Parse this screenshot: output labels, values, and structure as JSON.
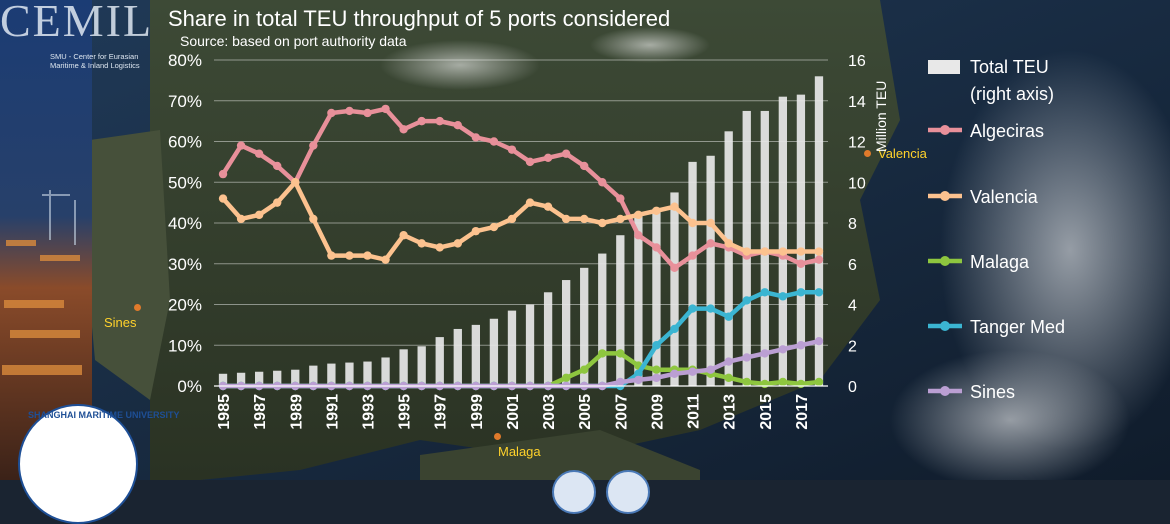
{
  "header": {
    "title": "Share in total TEU throughput of 5 ports considered",
    "subtitle": "Source: based on port authority data"
  },
  "logo": {
    "letters": "CEMIL",
    "tagline_1": "SMU - Center for Eurasian",
    "tagline_2": "Maritime & Inland Logistics"
  },
  "university": {
    "name": "SHANGHAI MARITIME UNIVERSITY"
  },
  "map_labels": {
    "sines": "Sines",
    "valencia": "Valencia",
    "malaga": "Malaga"
  },
  "colors": {
    "Algeciras": "#e8909a",
    "Valencia": "#fcc28f",
    "Malaga": "#8ec63f",
    "Tanger Med": "#3bb5d2",
    "Sines": "#bb9fd3",
    "bars": "#e8e8e8"
  },
  "chart_data": {
    "type": "bar+line",
    "title": "Share in total TEU throughput of 5 ports considered",
    "x": [
      1985,
      1986,
      1987,
      1988,
      1989,
      1990,
      1991,
      1992,
      1993,
      1994,
      1995,
      1996,
      1997,
      1998,
      1999,
      2000,
      2001,
      2002,
      2003,
      2004,
      2005,
      2006,
      2007,
      2008,
      2009,
      2010,
      2011,
      2012,
      2013,
      2014,
      2015,
      2016,
      2017,
      2018
    ],
    "x_tick_labels": [
      "1985",
      "1987",
      "1989",
      "1991",
      "1993",
      "1995",
      "1997",
      "1999",
      "2001",
      "2003",
      "2005",
      "2007",
      "2009",
      "2011",
      "2013",
      "2015",
      "2017"
    ],
    "left_axis": {
      "label": "",
      "range": [
        0,
        80
      ],
      "ticks": [
        "0%",
        "10%",
        "20%",
        "30%",
        "40%",
        "50%",
        "60%",
        "70%",
        "80%"
      ]
    },
    "right_axis": {
      "label": "Million TEU",
      "range": [
        0,
        16
      ],
      "ticks": [
        "0",
        "2",
        "4",
        "6",
        "8",
        "10",
        "12",
        "14",
        "16"
      ]
    },
    "bars": {
      "name_line1": "Total TEU",
      "name_line2": "(right axis)",
      "values": [
        0.6,
        0.65,
        0.7,
        0.75,
        0.8,
        1.0,
        1.1,
        1.15,
        1.2,
        1.4,
        1.8,
        1.95,
        2.4,
        2.8,
        3.0,
        3.3,
        3.7,
        4.0,
        4.6,
        5.2,
        5.8,
        6.5,
        7.4,
        8.5,
        8.7,
        9.5,
        11.0,
        11.3,
        12.5,
        13.5,
        13.5,
        14.2,
        14.3,
        15.2
      ]
    },
    "series": [
      {
        "name": "Algeciras",
        "values": [
          52,
          59,
          57,
          54,
          50,
          59,
          67,
          67.5,
          67,
          68,
          63,
          65,
          65,
          64,
          61,
          60,
          58,
          55,
          56,
          57,
          54,
          50,
          46,
          37,
          34,
          29,
          32,
          35,
          34,
          32,
          33,
          32,
          30,
          31
        ]
      },
      {
        "name": "Valencia",
        "values": [
          46,
          41,
          42,
          45,
          50,
          41,
          32,
          32,
          32,
          31,
          37,
          35,
          34,
          35,
          38,
          39,
          41,
          45,
          44,
          41,
          41,
          40,
          41,
          42,
          43,
          44,
          40,
          40,
          35,
          33,
          33,
          33,
          33,
          33
        ]
      },
      {
        "name": "Malaga",
        "values": [
          0,
          0,
          0,
          0,
          0,
          0,
          0,
          0,
          0,
          0,
          0,
          0,
          0,
          0,
          0,
          0,
          0,
          0,
          0,
          2,
          4,
          8,
          8,
          5,
          4,
          4,
          4,
          3,
          2,
          1,
          0.5,
          1,
          0.5,
          1
        ]
      },
      {
        "name": "Tanger Med",
        "values": [
          0,
          0,
          0,
          0,
          0,
          0,
          0,
          0,
          0,
          0,
          0,
          0,
          0,
          0,
          0,
          0,
          0,
          0,
          0,
          0,
          0,
          0,
          0,
          3,
          10,
          14,
          19,
          19,
          17,
          21,
          23,
          22,
          23,
          23
        ]
      },
      {
        "name": "Sines",
        "values": [
          0,
          0,
          0,
          0,
          0,
          0,
          0,
          0,
          0,
          0,
          0,
          0,
          0,
          0,
          0,
          0,
          0,
          0,
          0,
          0,
          0,
          0,
          1,
          1.5,
          2,
          3,
          3.5,
          4,
          6,
          7,
          8,
          9,
          10,
          11
        ]
      }
    ],
    "legend_position": "right"
  }
}
